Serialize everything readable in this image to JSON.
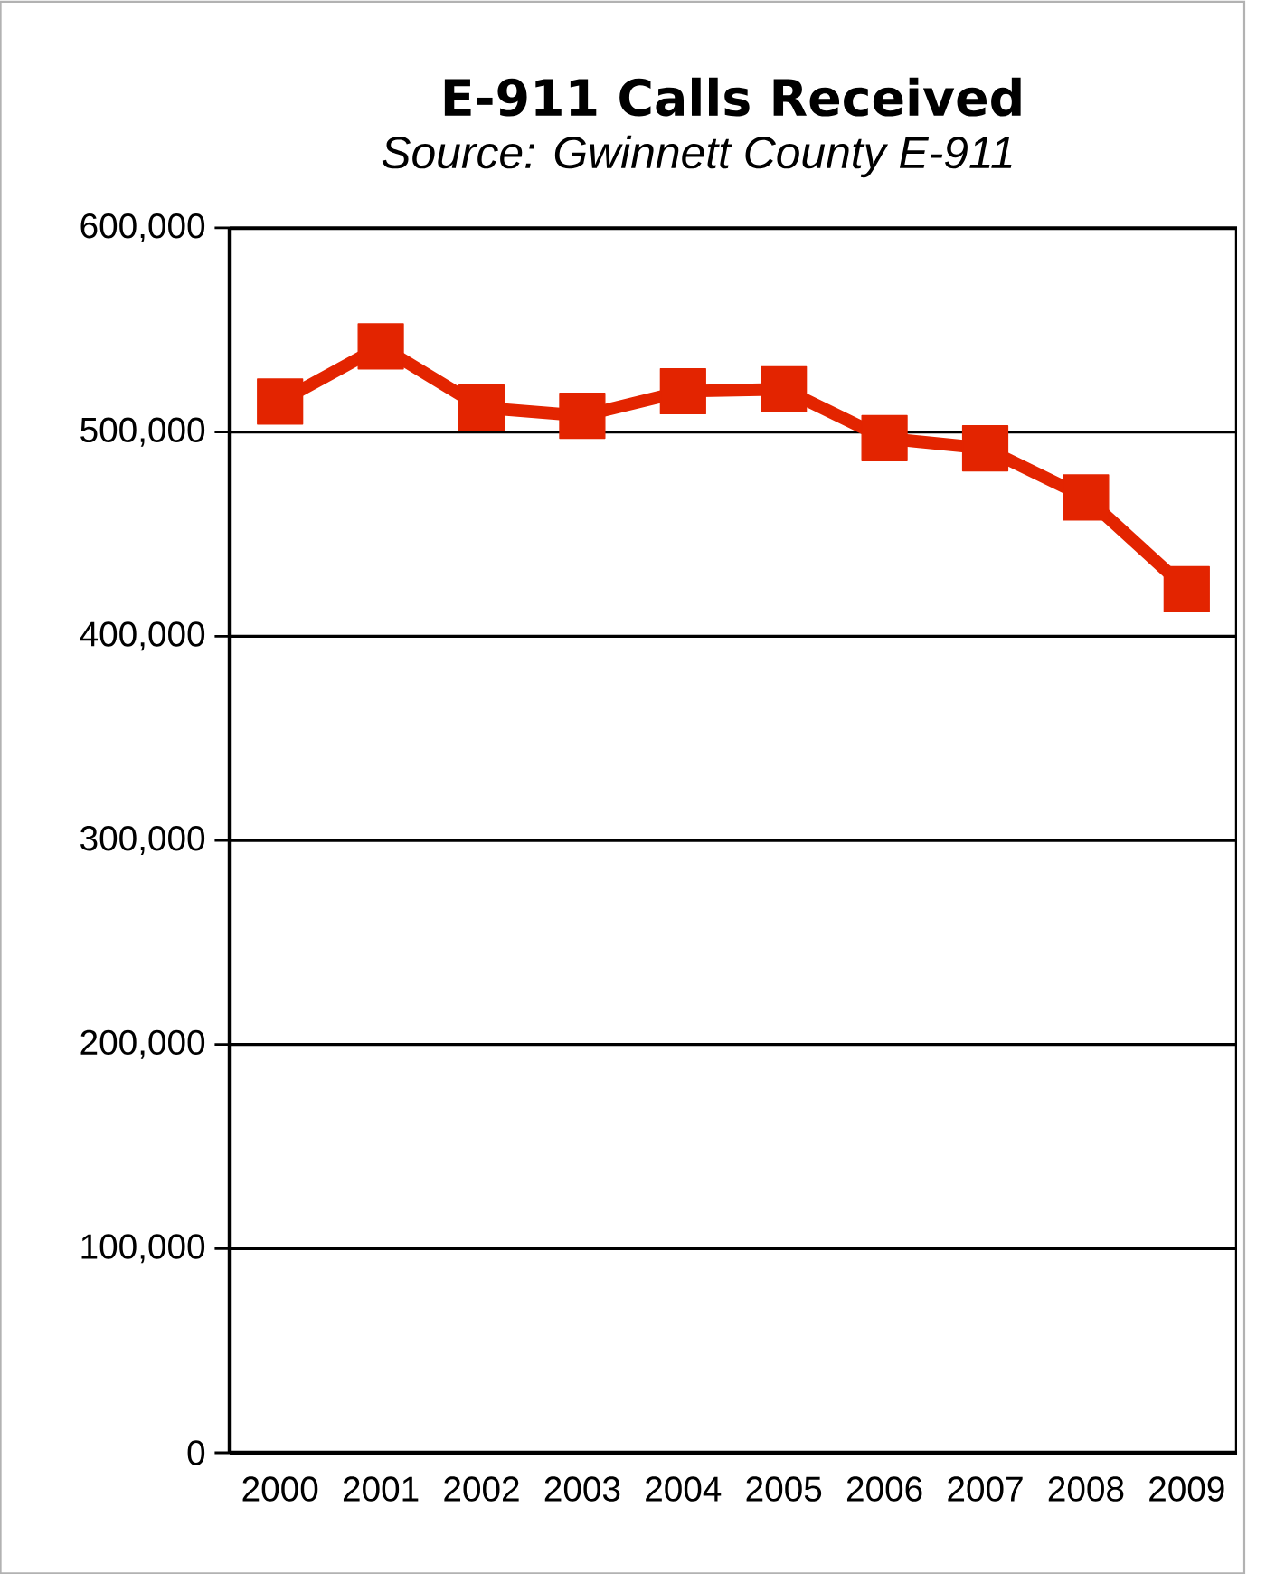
{
  "chart_data": {
    "type": "line",
    "title": "E-911 Calls Received",
    "subtitle": "Source:  Gwinnett County E-911",
    "categories": [
      "2000",
      "2001",
      "2002",
      "2003",
      "2004",
      "2005",
      "2006",
      "2007",
      "2008",
      "2009"
    ],
    "series": [
      {
        "color": "#e32400",
        "values": [
          515000,
          542000,
          512000,
          508000,
          520000,
          521000,
          497000,
          492000,
          468000,
          423000
        ]
      }
    ],
    "ylim": [
      0,
      600000
    ],
    "yticks": [
      {
        "value": 0,
        "label": "0"
      },
      {
        "value": 100000,
        "label": "100,000"
      },
      {
        "value": 200000,
        "label": "200,000"
      },
      {
        "value": 300000,
        "label": "300,000"
      },
      {
        "value": 400000,
        "label": "400,000"
      },
      {
        "value": 500000,
        "label": "500,000"
      },
      {
        "value": 600000,
        "label": "600,000"
      }
    ],
    "grid": "y",
    "marker": "square",
    "line_style": "solid"
  }
}
